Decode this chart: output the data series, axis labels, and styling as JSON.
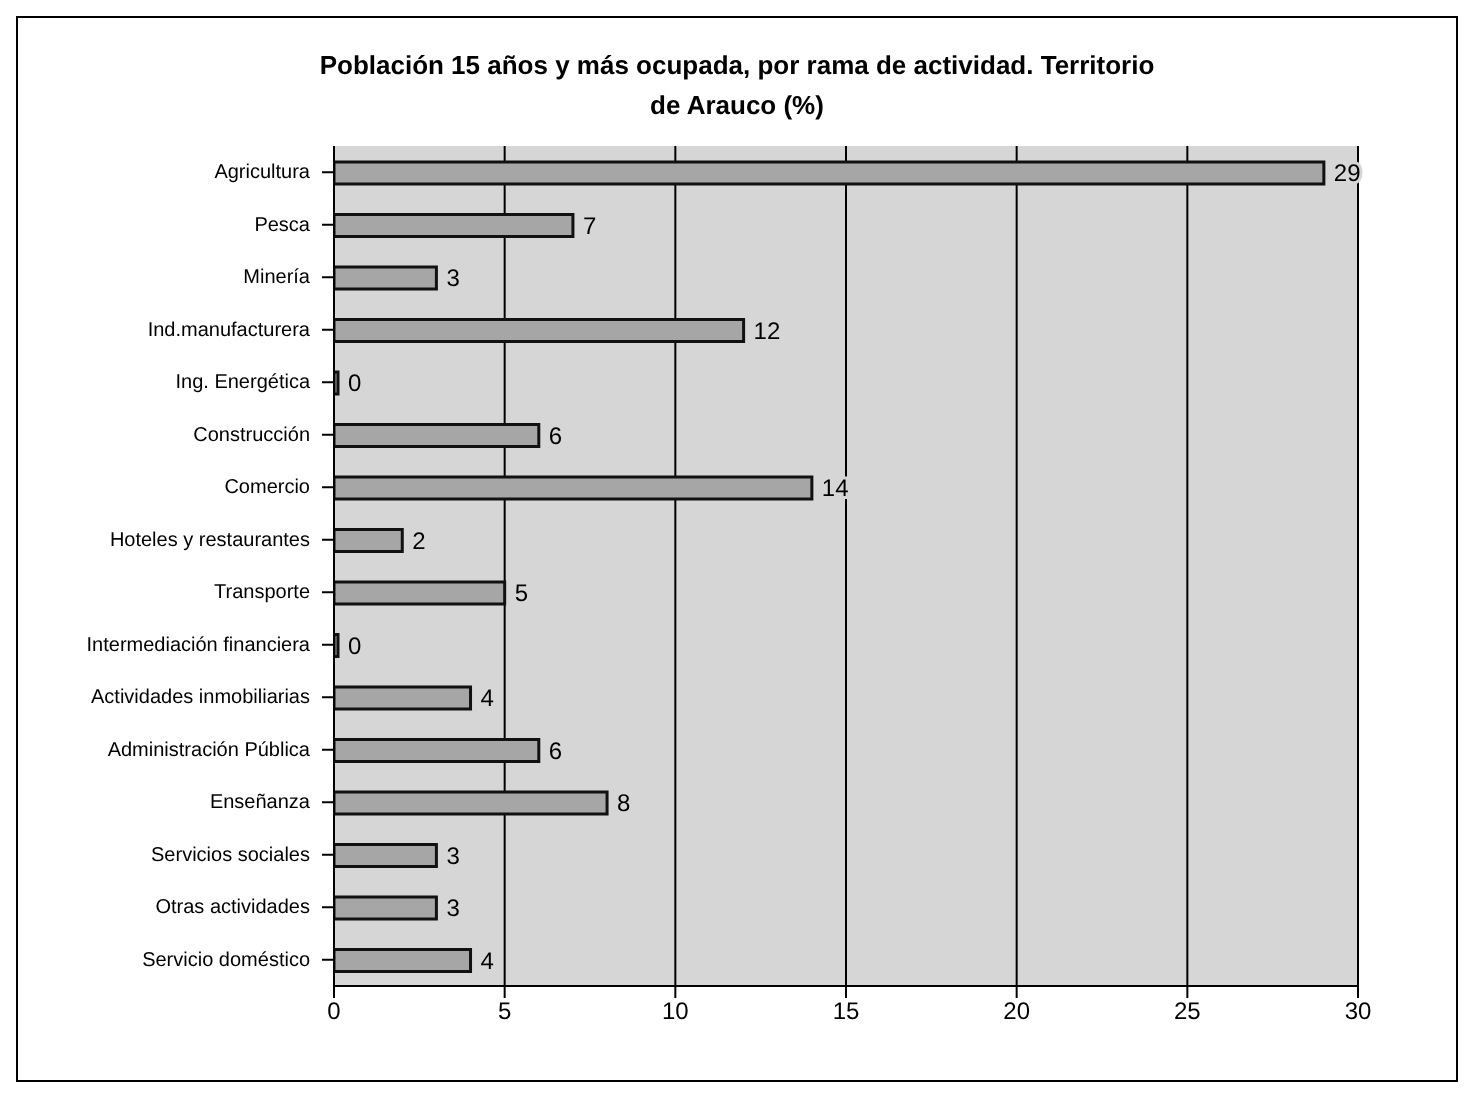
{
  "chart_data": {
    "type": "bar",
    "orientation": "horizontal",
    "title": "Población 15 años y más ocupada, por rama de actividad. Territorio de Arauco (%)",
    "categories": [
      "Agricultura",
      "Pesca",
      "Minería",
      "Ind.manufacturera",
      "Ing. Energética",
      "Construcción",
      "Comercio",
      "Hoteles y restaurantes",
      "Transporte",
      "Intermediación financiera",
      "Actividades inmobiliarias",
      "Administración Pública",
      "Enseñanza",
      "Servicios sociales",
      "Otras actividades",
      "Servicio doméstico"
    ],
    "values": [
      29,
      7,
      3,
      12,
      0,
      6,
      14,
      2,
      5,
      0,
      4,
      6,
      8,
      3,
      3,
      4
    ],
    "color": "#a6a6a6",
    "xlim": [
      0,
      30
    ],
    "xticks": [
      0,
      5,
      10,
      15,
      20,
      25,
      30
    ],
    "grid": "x",
    "data_labels": true
  }
}
